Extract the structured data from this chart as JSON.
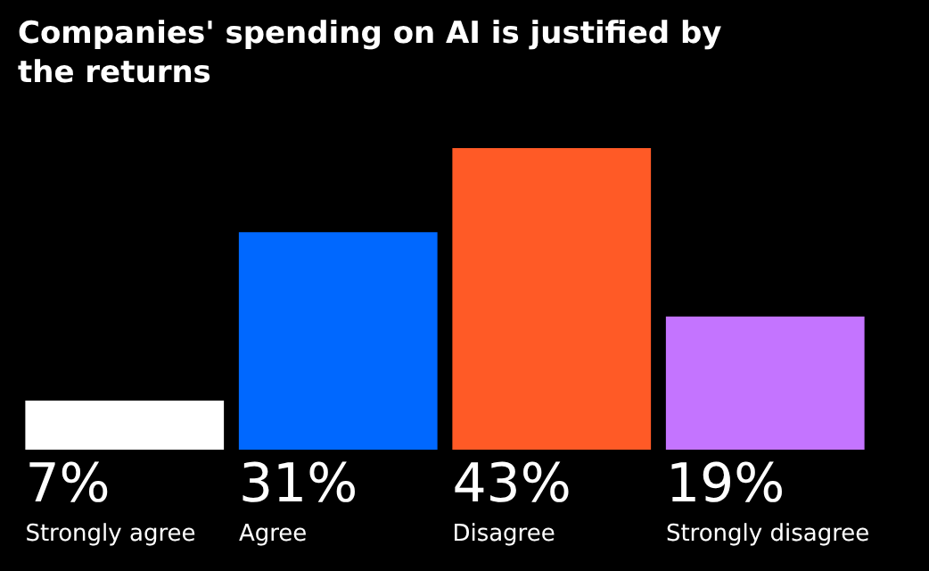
{
  "chart_data": {
    "type": "bar",
    "title": "Companies' spending on AI is justified by the returns",
    "categories": [
      "Strongly agree",
      "Agree",
      "Disagree",
      "Strongly disagree"
    ],
    "values": [
      7,
      31,
      43,
      19
    ],
    "colors": [
      "#ffffff",
      "#0068ff",
      "#ff5a26",
      "#c474ff"
    ],
    "value_labels": [
      "7%",
      "31%",
      "43%",
      "19%"
    ],
    "legend": false
  }
}
